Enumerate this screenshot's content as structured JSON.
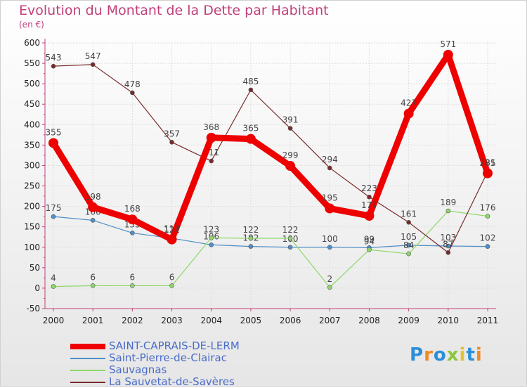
{
  "title": "Evolution du Montant de la Dette par Habitant",
  "subtitle": "(en €)",
  "logo": {
    "text": "Proxiti",
    "colors": [
      "#2a8fd8",
      "#f08a24",
      "#2a8fd8",
      "#8cc63f",
      "#e8c22a",
      "#2a8fd8",
      "#f08a24"
    ]
  },
  "chart_data": {
    "type": "line",
    "x": [
      "2000",
      "2001",
      "2002",
      "2003",
      "2004",
      "2005",
      "2006",
      "2007",
      "2008",
      "2009",
      "2010",
      "2011"
    ],
    "ylim": [
      -50,
      600
    ],
    "yticks": [
      -50,
      0,
      50,
      100,
      150,
      200,
      250,
      300,
      350,
      400,
      450,
      500,
      550,
      600
    ],
    "grid": true,
    "legend_position": "bottom-left",
    "series": [
      {
        "name": "Saint-Pierre-de-Clairac",
        "color": "#4f8fc8",
        "values": [
          175,
          166,
          135,
          122,
          106,
          102,
          100,
          100,
          99,
          105,
          103,
          102
        ],
        "labels": [
          "175",
          "166",
          "135",
          "122",
          "106",
          "102",
          "100",
          "100",
          "99",
          "105",
          "103",
          "102"
        ]
      },
      {
        "name": "Sauvagnas",
        "color": "#8ed86a",
        "values": [
          4,
          6,
          6,
          6,
          123,
          122,
          122,
          2,
          94,
          84,
          189,
          176
        ],
        "labels": [
          "4",
          "6",
          "6",
          "6",
          "123",
          "122",
          "122",
          "2",
          "94",
          "84",
          "189",
          "176"
        ]
      },
      {
        "name": "La Sauvetat-de-Savères",
        "color": "#7a2a2a",
        "values": [
          543,
          547,
          478,
          357,
          311,
          485,
          391,
          294,
          223,
          161,
          87,
          285
        ],
        "labels": [
          "543",
          "547",
          "478",
          "357",
          "311",
          "485",
          "391",
          "294",
          "223",
          "161",
          "87",
          "285"
        ]
      },
      {
        "name": "SAINT-CAPRAIS-DE-LERM",
        "color": "#ee0000",
        "values": [
          355,
          198,
          168,
          119,
          368,
          365,
          299,
          195,
          177,
          427,
          571,
          281
        ],
        "labels": [
          "355",
          "198",
          "168",
          "119",
          "368",
          "365",
          "299",
          "195",
          "177",
          "427",
          "571",
          "281"
        ]
      }
    ],
    "legend_order": [
      "SAINT-CAPRAIS-DE-LERM",
      "Saint-Pierre-de-Clairac",
      "Sauvagnas",
      "La Sauvetat-de-Savères"
    ]
  }
}
